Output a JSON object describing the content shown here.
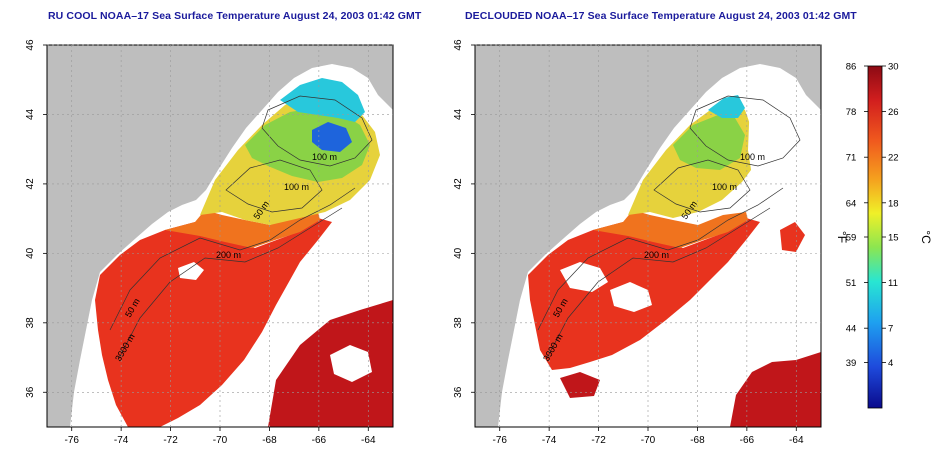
{
  "panels": [
    {
      "title": "RU COOL NOAA–17 Sea Surface Temperature August 24, 2003 01:42 GMT",
      "contour_labels": [
        "100 m",
        "100 m",
        "50 m",
        "200 m",
        "50 m",
        "3000 m"
      ]
    },
    {
      "title": "DECLOUDED NOAA–17 Sea Surface Temperature August 24, 2003 01:42 GMT",
      "contour_labels": [
        "100 m",
        "100 m",
        "50 m",
        "200 m",
        "50 m",
        "3000 m"
      ]
    }
  ],
  "axes": {
    "longitude_ticks": [
      "-76",
      "-74",
      "-72",
      "-70",
      "-68",
      "-66",
      "-64"
    ],
    "latitude_ticks": [
      "46",
      "44",
      "42",
      "40",
      "38",
      "36"
    ],
    "lon_range": [
      -77,
      -63
    ],
    "lat_range": [
      35,
      46
    ],
    "grid": true
  },
  "colorbar": {
    "fahrenheit_unit": "°F",
    "celsius_unit": "°C",
    "fahrenheit_ticks": [
      "86",
      "78",
      "71",
      "64",
      "59",
      "51",
      "44",
      "39"
    ],
    "celsius_ticks": [
      "30",
      "26",
      "22",
      "18",
      "15",
      "11",
      "7",
      "4"
    ],
    "celsius_range": [
      0,
      30
    ]
  },
  "colors": {
    "land": "#bebebe",
    "cloud_mask": "#ffffff",
    "title": "#1a1a9c",
    "warm_water": "#e8331e",
    "hot_water": "#c0161a"
  }
}
